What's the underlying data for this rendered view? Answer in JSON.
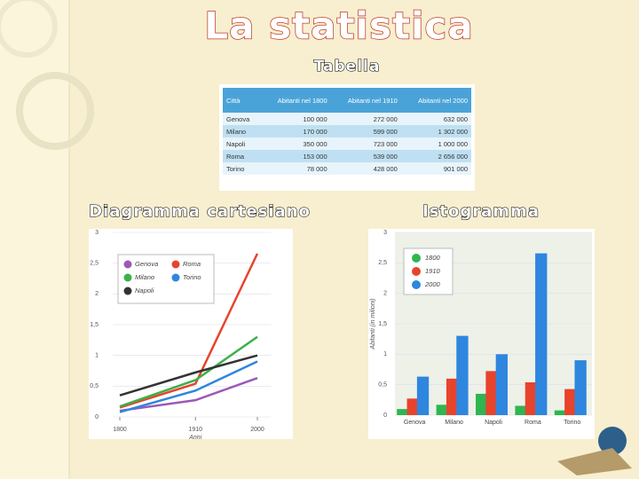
{
  "title": "La statistica",
  "sections": {
    "table": "Tabella",
    "line": "Diagramma cartesiano",
    "bar": "Istogramma"
  },
  "table": {
    "header": [
      "Città",
      "Abitanti nel 1800",
      "Abitanti nel 1910",
      "Abitanti nel 2000"
    ],
    "rows": [
      [
        "Genova",
        "100 000",
        "272 000",
        "632 000"
      ],
      [
        "Milano",
        "170 000",
        "599 000",
        "1 302 000"
      ],
      [
        "Napoli",
        "350 000",
        "723 000",
        "1 000 000"
      ],
      [
        "Roma",
        "153 000",
        "539 000",
        "2 656 000"
      ],
      [
        "Torino",
        "78 000",
        "428 000",
        "901 000"
      ]
    ]
  },
  "chart_data": [
    {
      "type": "line",
      "x_label": "Anni",
      "x": [
        1800,
        1910,
        2000
      ],
      "xlim": [
        1790,
        2020
      ],
      "xticks": [
        1800,
        1910,
        2000
      ],
      "ylim": [
        0,
        3
      ],
      "yticks": [
        0,
        {
          "value": 0.5,
          "label": "0,5"
        },
        1,
        {
          "value": 1.5,
          "label": "1,5"
        },
        2,
        {
          "value": 2.5,
          "label": "2,5"
        },
        3
      ],
      "series": [
        {
          "name": "Genova",
          "color": "#9b59b6",
          "values": [
            0.1,
            0.272,
            0.632
          ]
        },
        {
          "name": "Roma",
          "color": "#e8432c",
          "values": [
            0.153,
            0.539,
            2.656
          ]
        },
        {
          "name": "Milano",
          "color": "#3cb04a",
          "values": [
            0.17,
            0.599,
            1.302
          ]
        },
        {
          "name": "Torino",
          "color": "#2e86de",
          "values": [
            0.078,
            0.428,
            0.901
          ]
        },
        {
          "name": "Napoli",
          "color": "#333333",
          "values": [
            0.35,
            0.723,
            1.0
          ]
        }
      ]
    },
    {
      "type": "bar",
      "y_label": "Abitanti (in milioni)",
      "categories": [
        "Genova",
        "Milano",
        "Napoli",
        "Roma",
        "Torino"
      ],
      "ylim": [
        0,
        3
      ],
      "yticks": [
        0,
        {
          "value": 0.5,
          "label": "0,5"
        },
        1,
        {
          "value": 1.5,
          "label": "1,5"
        },
        2,
        {
          "value": 2.5,
          "label": "2,5"
        },
        3
      ],
      "series": [
        {
          "name": "1800",
          "color": "#2fb551",
          "values": [
            0.1,
            0.17,
            0.35,
            0.153,
            0.078
          ]
        },
        {
          "name": "1910",
          "color": "#e8432c",
          "values": [
            0.272,
            0.599,
            0.723,
            0.539,
            0.428
          ]
        },
        {
          "name": "2000",
          "color": "#2e86de",
          "values": [
            0.632,
            1.302,
            1.0,
            2.656,
            0.901
          ]
        }
      ]
    }
  ]
}
